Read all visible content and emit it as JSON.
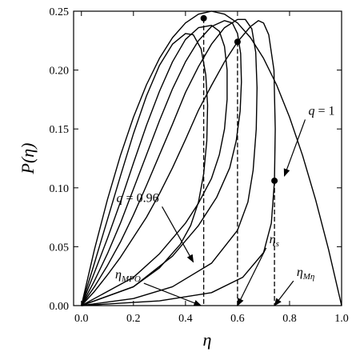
{
  "chart_data": {
    "type": "line",
    "title": "",
    "xlabel": "η",
    "ylabel": "P(η)",
    "xlim": [
      -0.03,
      1.0
    ],
    "ylim": [
      0.0,
      0.25
    ],
    "x_ticks": [
      "0.0",
      "0.2",
      "0.4",
      "0.6",
      "0.8",
      "1.0"
    ],
    "y_ticks": [
      "0.00",
      "0.05",
      "0.10",
      "0.15",
      "0.20",
      "0.25"
    ],
    "grid": false,
    "legend": "none",
    "series": [
      {
        "points": [
          [
            0.0,
            0.0
          ],
          [
            0.05,
            0.0475
          ],
          [
            0.1,
            0.09
          ],
          [
            0.15,
            0.1275
          ],
          [
            0.2,
            0.16
          ],
          [
            0.25,
            0.1875
          ],
          [
            0.3,
            0.21
          ],
          [
            0.35,
            0.2275
          ],
          [
            0.4,
            0.24
          ],
          [
            0.45,
            0.2475
          ],
          [
            0.5,
            0.25
          ],
          [
            0.55,
            0.2475
          ],
          [
            0.6,
            0.24
          ],
          [
            0.65,
            0.2275
          ],
          [
            0.7,
            0.21
          ],
          [
            0.75,
            0.1875
          ],
          [
            0.8,
            0.16
          ],
          [
            0.85,
            0.1275
          ],
          [
            0.9,
            0.09
          ],
          [
            0.95,
            0.0475
          ],
          [
            1.0,
            0.0
          ]
        ]
      },
      {
        "points": [
          [
            0.0,
            0.0
          ],
          [
            0.05,
            0.012
          ],
          [
            0.1,
            0.026
          ],
          [
            0.15,
            0.041
          ],
          [
            0.2,
            0.058
          ],
          [
            0.25,
            0.075
          ],
          [
            0.3,
            0.095
          ],
          [
            0.35,
            0.117
          ],
          [
            0.4,
            0.141
          ],
          [
            0.45,
            0.166
          ],
          [
            0.5,
            0.187
          ],
          [
            0.55,
            0.207
          ],
          [
            0.6,
            0.224
          ],
          [
            0.65,
            0.237
          ],
          [
            0.68,
            0.242
          ],
          [
            0.7,
            0.24
          ],
          [
            0.72,
            0.23
          ],
          [
            0.74,
            0.2
          ],
          [
            0.745,
            0.15
          ],
          [
            0.742,
            0.106
          ],
          [
            0.73,
            0.07
          ],
          [
            0.7,
            0.045
          ],
          [
            0.62,
            0.024
          ],
          [
            0.5,
            0.011
          ],
          [
            0.3,
            0.004
          ],
          [
            0.0,
            0.0
          ]
        ]
      },
      {
        "points": [
          [
            0.0,
            0.0
          ],
          [
            0.05,
            0.016
          ],
          [
            0.1,
            0.034
          ],
          [
            0.15,
            0.054
          ],
          [
            0.2,
            0.077
          ],
          [
            0.25,
            0.102
          ],
          [
            0.3,
            0.128
          ],
          [
            0.35,
            0.154
          ],
          [
            0.4,
            0.181
          ],
          [
            0.45,
            0.203
          ],
          [
            0.5,
            0.222
          ],
          [
            0.55,
            0.236
          ],
          [
            0.6,
            0.243
          ],
          [
            0.63,
            0.243
          ],
          [
            0.655,
            0.235
          ],
          [
            0.67,
            0.215
          ],
          [
            0.675,
            0.185
          ],
          [
            0.672,
            0.15
          ],
          [
            0.66,
            0.115
          ],
          [
            0.64,
            0.088
          ],
          [
            0.6,
            0.064
          ],
          [
            0.5,
            0.036
          ],
          [
            0.35,
            0.016
          ],
          [
            0.2,
            0.006
          ],
          [
            0.0,
            0.0
          ]
        ]
      },
      {
        "points": [
          [
            0.0,
            0.0
          ],
          [
            0.05,
            0.021
          ],
          [
            0.1,
            0.044
          ],
          [
            0.15,
            0.07
          ],
          [
            0.2,
            0.099
          ],
          [
            0.25,
            0.128
          ],
          [
            0.3,
            0.157
          ],
          [
            0.35,
            0.184
          ],
          [
            0.4,
            0.207
          ],
          [
            0.45,
            0.225
          ],
          [
            0.5,
            0.237
          ],
          [
            0.55,
            0.242
          ],
          [
            0.58,
            0.24
          ],
          [
            0.6,
            0.231
          ],
          [
            0.612,
            0.214
          ],
          [
            0.615,
            0.19
          ],
          [
            0.61,
            0.165
          ],
          [
            0.595,
            0.14
          ],
          [
            0.57,
            0.117
          ],
          [
            0.52,
            0.092
          ],
          [
            0.45,
            0.068
          ],
          [
            0.35,
            0.042
          ],
          [
            0.2,
            0.016
          ],
          [
            0.0,
            0.0
          ]
        ]
      },
      {
        "points": [
          [
            0.0,
            0.0
          ],
          [
            0.05,
            0.028
          ],
          [
            0.1,
            0.057
          ],
          [
            0.15,
            0.088
          ],
          [
            0.2,
            0.121
          ],
          [
            0.25,
            0.153
          ],
          [
            0.3,
            0.182
          ],
          [
            0.35,
            0.207
          ],
          [
            0.4,
            0.226
          ],
          [
            0.45,
            0.236
          ],
          [
            0.5,
            0.238
          ],
          [
            0.53,
            0.233
          ],
          [
            0.55,
            0.22
          ],
          [
            0.56,
            0.2
          ],
          [
            0.56,
            0.175
          ],
          [
            0.55,
            0.15
          ],
          [
            0.53,
            0.128
          ],
          [
            0.5,
            0.108
          ],
          [
            0.45,
            0.087
          ],
          [
            0.4,
            0.07
          ],
          [
            0.3,
            0.044
          ],
          [
            0.2,
            0.024
          ],
          [
            0.0,
            0.0
          ]
        ]
      },
      {
        "points": [
          [
            0.0,
            0.0
          ],
          [
            0.05,
            0.036
          ],
          [
            0.1,
            0.073
          ],
          [
            0.15,
            0.11
          ],
          [
            0.2,
            0.146
          ],
          [
            0.25,
            0.178
          ],
          [
            0.3,
            0.204
          ],
          [
            0.35,
            0.222
          ],
          [
            0.4,
            0.231
          ],
          [
            0.43,
            0.23
          ],
          [
            0.46,
            0.218
          ],
          [
            0.478,
            0.196
          ],
          [
            0.485,
            0.17
          ],
          [
            0.482,
            0.14
          ],
          [
            0.47,
            0.112
          ],
          [
            0.45,
            0.088
          ],
          [
            0.42,
            0.068
          ],
          [
            0.38,
            0.052
          ],
          [
            0.3,
            0.032
          ],
          [
            0.2,
            0.016
          ],
          [
            0.0,
            0.0
          ]
        ]
      }
    ],
    "markers": [
      {
        "x": 0.47,
        "y": 0.244
      },
      {
        "x": 0.6,
        "y": 0.224
      },
      {
        "x": 0.742,
        "y": 0.106
      }
    ],
    "vlines": [
      0.47,
      0.6,
      0.742
    ],
    "annotations": [
      {
        "main": "q",
        "rest": " = 1",
        "sub": "",
        "arrow_from": [
          0.86,
          0.158
        ],
        "arrow_to": [
          0.78,
          0.11
        ]
      },
      {
        "main": "q",
        "rest": " = 0.96",
        "sub": "",
        "arrow_from": [
          0.31,
          0.084
        ],
        "arrow_to": [
          0.43,
          0.037
        ]
      },
      {
        "main": "η",
        "rest": "",
        "sub": "MPO",
        "arrow_from": [
          0.24,
          0.019
        ],
        "arrow_to": [
          0.46,
          0.0
        ]
      },
      {
        "main": "η",
        "rest": "",
        "sub": "s",
        "arrow_from": [
          0.71,
          0.049
        ],
        "arrow_to": [
          0.6,
          0.0
        ]
      },
      {
        "main": "η",
        "rest": "",
        "sub": "Mη",
        "arrow_from": [
          0.815,
          0.021
        ],
        "arrow_to": [
          0.742,
          0.0
        ]
      }
    ]
  }
}
